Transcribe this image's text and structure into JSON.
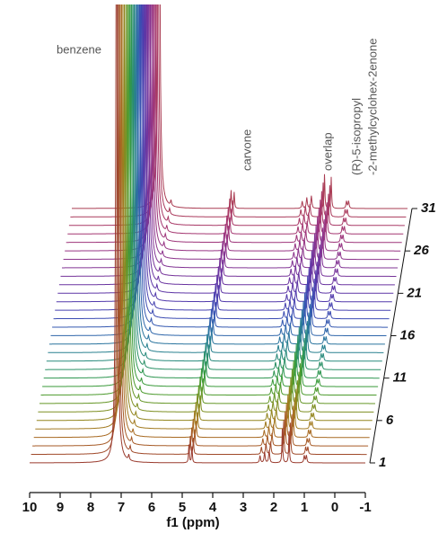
{
  "chart_data": {
    "type": "stacked_spectra",
    "xlabel": "f1 (ppm)",
    "xlim": [
      10,
      -1
    ],
    "xticks": [
      10,
      9,
      8,
      7,
      6,
      5,
      4,
      3,
      2,
      1,
      0,
      -1
    ],
    "annotations": [
      "benzene",
      "carvone",
      "overlap",
      "(R)-5-isopropyl",
      "-2-methylcyclohex-2enone"
    ],
    "stack_labels": [
      1,
      6,
      11,
      16,
      21,
      26,
      31
    ],
    "peaks": [
      {
        "ppm": 7.15,
        "height": 700,
        "width": 0.03
      },
      {
        "ppm": 6.75,
        "height": 6,
        "width": 0.02
      },
      {
        "ppm": 4.78,
        "height": 20,
        "width": 0.015
      },
      {
        "ppm": 4.68,
        "height": 18,
        "width": 0.015
      },
      {
        "ppm": 2.45,
        "height": 8,
        "width": 0.02
      },
      {
        "ppm": 2.3,
        "height": 12,
        "width": 0.02
      },
      {
        "ppm": 2.15,
        "height": 14,
        "width": 0.02
      },
      {
        "ppm": 1.72,
        "height": 38,
        "width": 0.015
      },
      {
        "ppm": 1.5,
        "height": 35,
        "width": 0.015
      },
      {
        "ppm": 1.0,
        "height": 8,
        "width": 0.02
      },
      {
        "ppm": 0.93,
        "height": 8,
        "width": 0.02
      }
    ],
    "series": [
      {
        "color": "#9a3b2e"
      },
      {
        "color": "#a04a2a"
      },
      {
        "color": "#a65a26"
      },
      {
        "color": "#a86a22"
      },
      {
        "color": "#a27a20"
      },
      {
        "color": "#93861f"
      },
      {
        "color": "#7e8f22"
      },
      {
        "color": "#659626"
      },
      {
        "color": "#4c9a2d"
      },
      {
        "color": "#3a9a3a"
      },
      {
        "color": "#2e9650"
      },
      {
        "color": "#2a9066"
      },
      {
        "color": "#288a7c"
      },
      {
        "color": "#28808f"
      },
      {
        "color": "#2a749e"
      },
      {
        "color": "#2e66aa"
      },
      {
        "color": "#3458b0"
      },
      {
        "color": "#3c4cb2"
      },
      {
        "color": "#4642b0"
      },
      {
        "color": "#523aac"
      },
      {
        "color": "#5e36a6"
      },
      {
        "color": "#6a34a0"
      },
      {
        "color": "#76349a"
      },
      {
        "color": "#823494"
      },
      {
        "color": "#8c348c"
      },
      {
        "color": "#963484"
      },
      {
        "color": "#9e347a"
      },
      {
        "color": "#a43670"
      },
      {
        "color": "#a83866"
      },
      {
        "color": "#aa3a5c"
      },
      {
        "color": "#aa3c52"
      }
    ]
  }
}
